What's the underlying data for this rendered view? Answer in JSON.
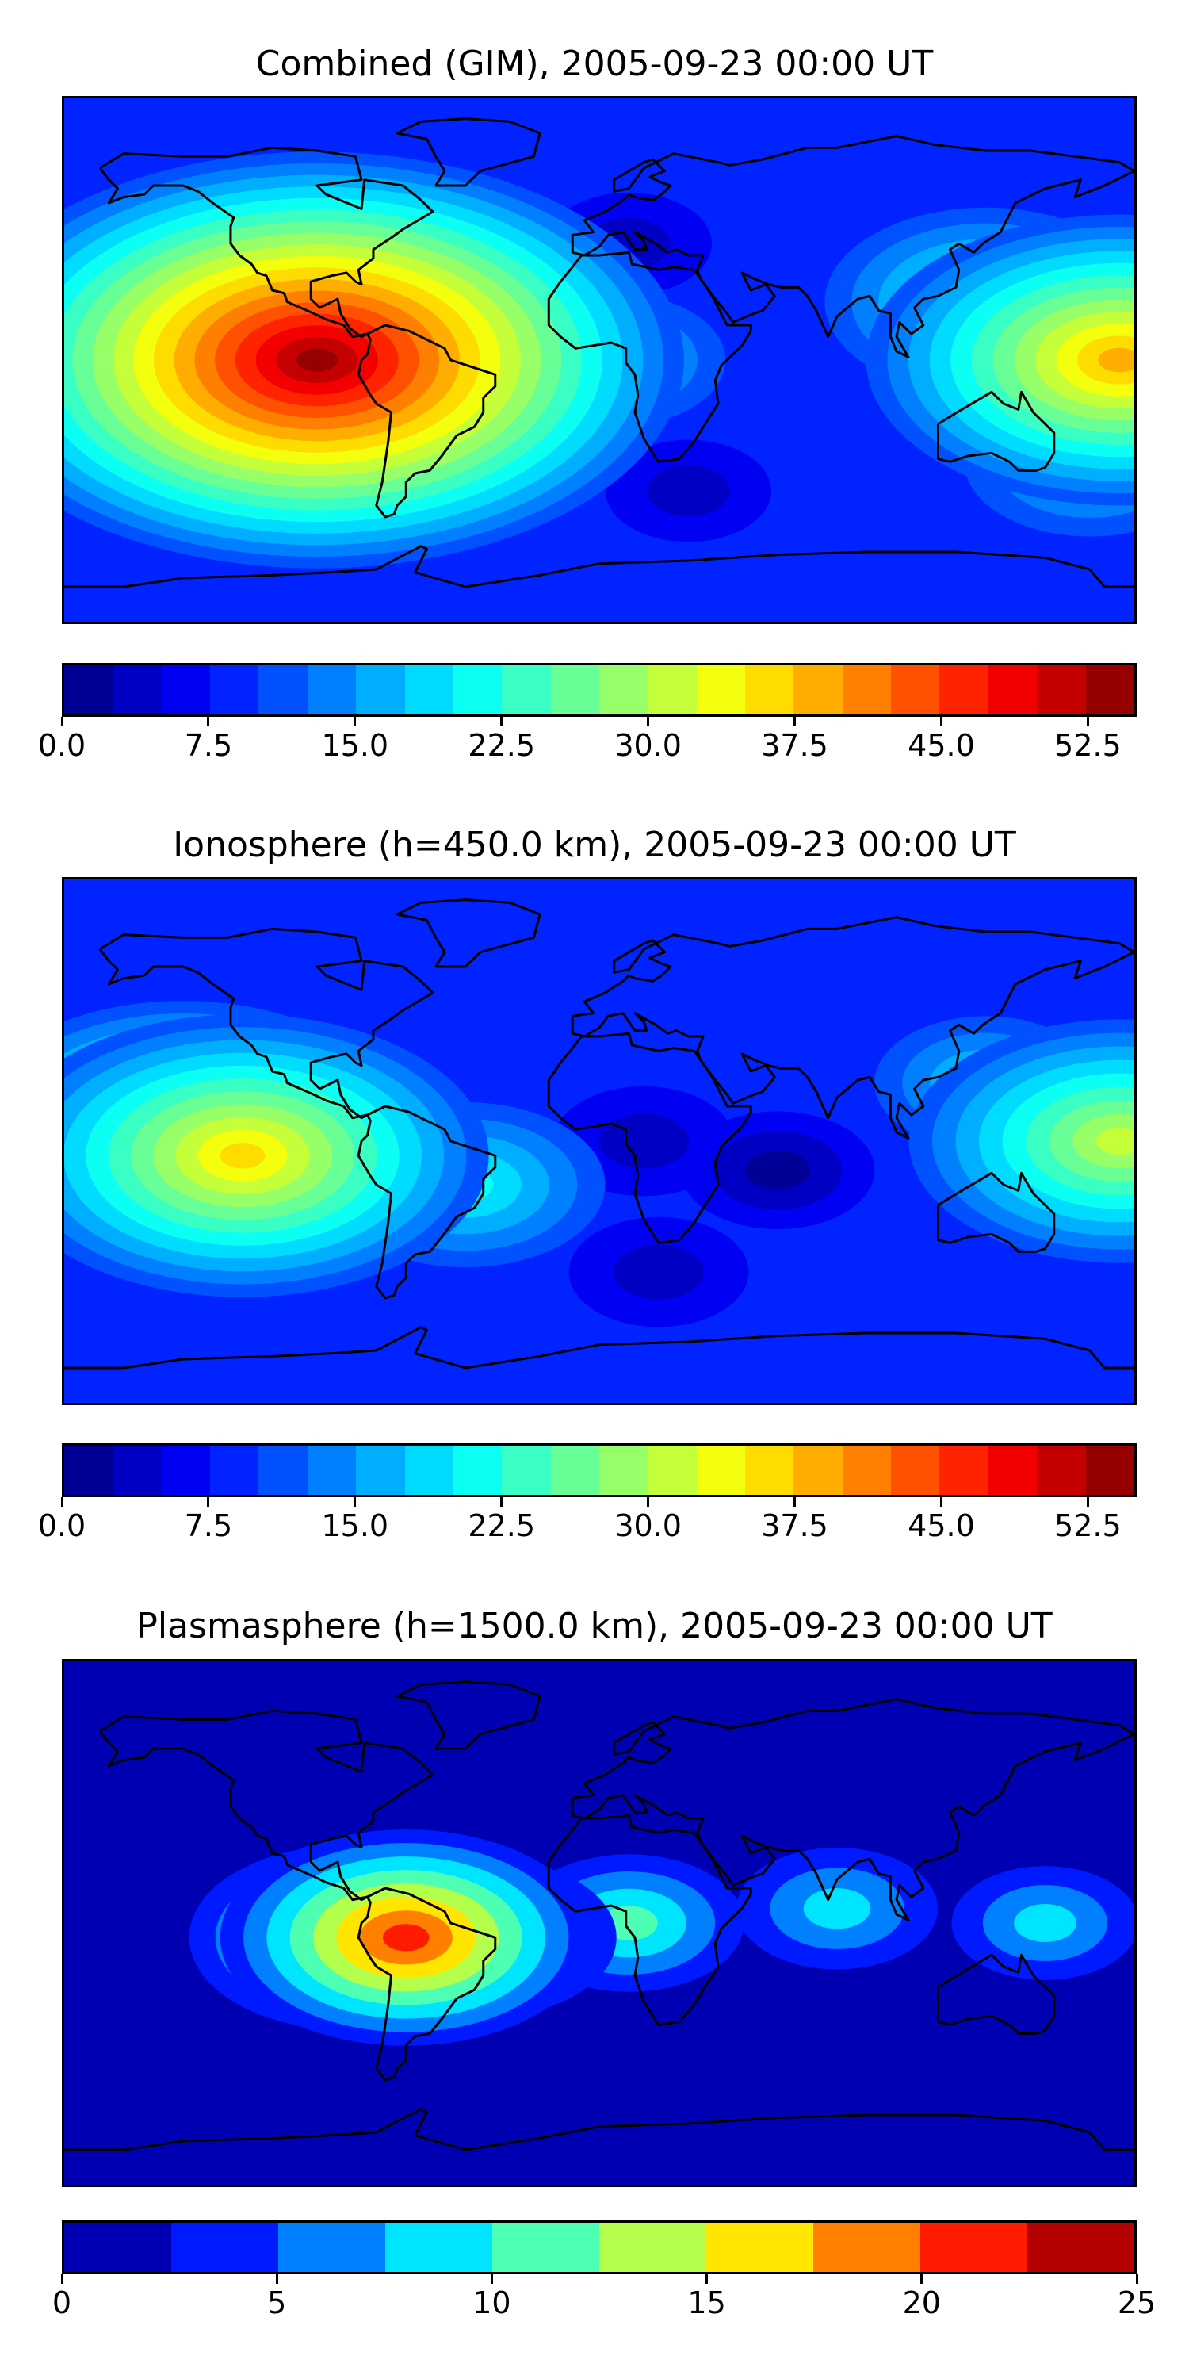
{
  "chart_data": [
    {
      "type": "heatmap",
      "title": "Combined (GIM), 2005-09-23 00:00 UT",
      "map_projection": "global equirectangular, coastlines",
      "colormap": "jet",
      "color_range": [
        0,
        55
      ],
      "colorbar_levels": 22,
      "colorbar_ticks": [
        0.0,
        7.5,
        15.0,
        22.5,
        30.0,
        37.5,
        45.0,
        52.5
      ],
      "colorbar_tick_labels": [
        "0.0",
        "7.5",
        "15.0",
        "22.5",
        "30.0",
        "37.5",
        "45.0",
        "52.5"
      ],
      "features": [
        {
          "lon": -95,
          "lat": 0,
          "value": 54
        },
        {
          "lon": -120,
          "lat": 0,
          "value": 40
        },
        {
          "lon": 175,
          "lat": 0,
          "value": 38
        },
        {
          "lon": 130,
          "lat": 20,
          "value": 25
        },
        {
          "lon": -30,
          "lat": -10,
          "value": 22
        },
        {
          "lon": 5,
          "lat": 0,
          "value": 18
        },
        {
          "lon": 165,
          "lat": -35,
          "value": 20
        },
        {
          "lon": -120,
          "lat": -35,
          "value": 20
        },
        {
          "lon": 10,
          "lat": 40,
          "value": 4
        },
        {
          "lon": 30,
          "lat": -45,
          "value": 4
        }
      ]
    },
    {
      "type": "heatmap",
      "title": "Ionosphere  (h=450.0 km), 2005-09-23 00:00 UT",
      "map_projection": "global equirectangular, coastlines",
      "colormap": "jet",
      "color_range": [
        0,
        55
      ],
      "colorbar_levels": 22,
      "colorbar_ticks": [
        0.0,
        7.5,
        15.0,
        22.5,
        30.0,
        37.5,
        45.0,
        52.5
      ],
      "colorbar_tick_labels": [
        "0.0",
        "7.5",
        "15.0",
        "22.5",
        "30.0",
        "37.5",
        "45.0",
        "52.5"
      ],
      "features": [
        {
          "lon": -120,
          "lat": -5,
          "value": 37
        },
        {
          "lon": -140,
          "lat": 5,
          "value": 33
        },
        {
          "lon": 175,
          "lat": 0,
          "value": 32
        },
        {
          "lon": -45,
          "lat": -15,
          "value": 22
        },
        {
          "lon": 130,
          "lat": 20,
          "value": 18
        },
        {
          "lon": 15,
          "lat": 0,
          "value": 3
        },
        {
          "lon": 60,
          "lat": -10,
          "value": 2
        },
        {
          "lon": 20,
          "lat": -45,
          "value": 3
        }
      ]
    },
    {
      "type": "heatmap",
      "title": "Plasmasphere (h=1500.0 km), 2005-09-23 00:00 UT",
      "map_projection": "global equirectangular, coastlines",
      "colormap": "jet",
      "color_range": [
        0,
        25
      ],
      "colorbar_levels": 10,
      "colorbar_ticks": [
        0,
        5,
        10,
        15,
        20,
        25
      ],
      "colorbar_tick_labels": [
        "0",
        "5",
        "10",
        "15",
        "20",
        "25"
      ],
      "features": [
        {
          "lon": -65,
          "lat": -5,
          "value": 21
        },
        {
          "lon": -85,
          "lat": -5,
          "value": 17
        },
        {
          "lon": -40,
          "lat": -5,
          "value": 14
        },
        {
          "lon": 10,
          "lat": 0,
          "value": 11
        },
        {
          "lon": 80,
          "lat": 5,
          "value": 9
        },
        {
          "lon": 150,
          "lat": 0,
          "value": 8
        },
        {
          "lon": 0,
          "lat": 60,
          "value": 1
        },
        {
          "lon": 0,
          "lat": -60,
          "value": 1
        }
      ]
    }
  ]
}
